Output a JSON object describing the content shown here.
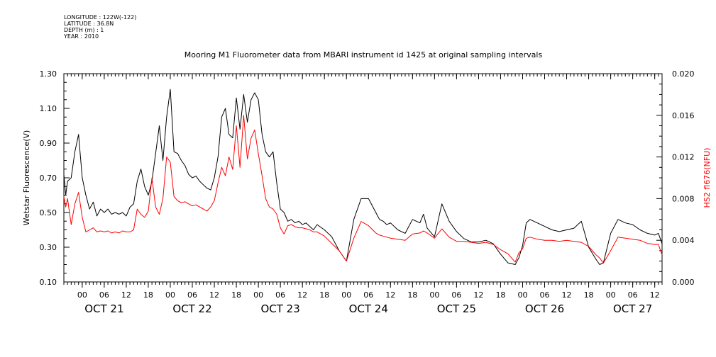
{
  "header": {
    "lines": [
      "LONGITUDE : 122W(-122)",
      "LATITUDE : 36.8N",
      "DEPTH (m) : 1",
      "YEAR : 2010"
    ]
  },
  "chart_data": {
    "type": "line",
    "title": "Mooring M1 Fluorometer data from MBARI instrument id 1425 at original sampling intervals",
    "ylabel": "Wetstar Fluorescence(V)",
    "y2label": "HS2 fl676(NFU)",
    "ylim": [
      0.1,
      1.3
    ],
    "y2lim": [
      0.0,
      0.02
    ],
    "yticks": [
      "0.10",
      "0.30",
      "0.50",
      "0.70",
      "0.90",
      "1.10",
      "1.30"
    ],
    "y2ticks": [
      "0.000",
      "0.004",
      "0.008",
      "0.012",
      "0.016",
      "0.020"
    ],
    "xlim_hours": [
      -5,
      158
    ],
    "hour_tick_labels": [
      "00",
      "06",
      "12",
      "18",
      "00",
      "06",
      "12",
      "18",
      "00",
      "06",
      "12",
      "18",
      "00",
      "06",
      "12",
      "18",
      "00",
      "06",
      "12",
      "18",
      "00",
      "06",
      "12",
      "18",
      "00",
      "06",
      "12"
    ],
    "day_labels": [
      "OCT 21",
      "OCT 22",
      "OCT 23",
      "OCT 24",
      "OCT 25",
      "OCT 26",
      "OCT 27"
    ],
    "legend": "none",
    "colors": {
      "axes": "#000000",
      "wetstar": "#000000",
      "hs2": "#ff0000",
      "y2label": "#ff0000"
    },
    "series": [
      {
        "axis": "left",
        "x": [
          -5,
          -4.5,
          -4,
          -3,
          -2,
          -1,
          0,
          1,
          2,
          3,
          4,
          5,
          6,
          7,
          8,
          9,
          10,
          11,
          12,
          13,
          14,
          15,
          16,
          17,
          18,
          19,
          20,
          21,
          22,
          23,
          24,
          25,
          26,
          27,
          28,
          29,
          30,
          31,
          32,
          33,
          34,
          35,
          36,
          37,
          38,
          39,
          40,
          41,
          42,
          43,
          44,
          45,
          46,
          47,
          48,
          49,
          50,
          51,
          52,
          53,
          54,
          55,
          56,
          57,
          58,
          59,
          60,
          61,
          62,
          63,
          64,
          66,
          68,
          70,
          72,
          74,
          76,
          78,
          80,
          81,
          82,
          83,
          84,
          86,
          88,
          90,
          92,
          93,
          94,
          96,
          98,
          100,
          102,
          104,
          106,
          108,
          110,
          112,
          114,
          116,
          118,
          119,
          120,
          121,
          122,
          124,
          126,
          128,
          130,
          132,
          134,
          136,
          138,
          140,
          141,
          142,
          144,
          146,
          148,
          150,
          152,
          154,
          156,
          157,
          158
        ],
        "y": [
          0.72,
          0.6,
          0.68,
          0.7,
          0.85,
          0.95,
          0.7,
          0.6,
          0.52,
          0.56,
          0.48,
          0.52,
          0.5,
          0.52,
          0.49,
          0.5,
          0.49,
          0.5,
          0.48,
          0.53,
          0.55,
          0.68,
          0.75,
          0.65,
          0.6,
          0.68,
          0.84,
          1.0,
          0.8,
          1.05,
          1.21,
          0.85,
          0.84,
          0.8,
          0.77,
          0.72,
          0.7,
          0.71,
          0.68,
          0.66,
          0.64,
          0.63,
          0.7,
          0.82,
          1.05,
          1.1,
          0.95,
          0.93,
          1.16,
          0.98,
          1.18,
          1.02,
          1.15,
          1.19,
          1.15,
          0.95,
          0.85,
          0.82,
          0.85,
          0.67,
          0.52,
          0.5,
          0.45,
          0.46,
          0.44,
          0.45,
          0.43,
          0.44,
          0.42,
          0.4,
          0.43,
          0.4,
          0.36,
          0.28,
          0.22,
          0.46,
          0.58,
          0.58,
          0.5,
          0.46,
          0.45,
          0.43,
          0.44,
          0.4,
          0.38,
          0.46,
          0.44,
          0.49,
          0.41,
          0.36,
          0.55,
          0.45,
          0.39,
          0.35,
          0.33,
          0.33,
          0.34,
          0.32,
          0.26,
          0.21,
          0.2,
          0.24,
          0.31,
          0.44,
          0.46,
          0.44,
          0.42,
          0.4,
          0.39,
          0.4,
          0.41,
          0.45,
          0.3,
          0.23,
          0.2,
          0.21,
          0.38,
          0.46,
          0.44,
          0.43,
          0.4,
          0.38,
          0.37,
          0.38,
          0.32
        ]
      },
      {
        "axis": "right",
        "x": [
          -5,
          -4.5,
          -4,
          -3,
          -2,
          -1,
          0,
          1,
          2,
          3,
          4,
          5,
          6,
          7,
          8,
          9,
          10,
          11,
          12,
          13,
          14,
          15,
          16,
          17,
          18,
          19,
          20,
          21,
          22,
          23,
          24,
          25,
          26,
          27,
          28,
          29,
          30,
          31,
          32,
          33,
          34,
          35,
          36,
          37,
          38,
          39,
          40,
          41,
          42,
          43,
          44,
          45,
          46,
          47,
          48,
          49,
          50,
          51,
          52,
          53,
          54,
          55,
          56,
          57,
          58,
          59,
          60,
          61,
          62,
          63,
          64,
          66,
          68,
          70,
          72,
          74,
          76,
          78,
          80,
          81,
          82,
          83,
          84,
          86,
          88,
          90,
          92,
          93,
          94,
          96,
          98,
          100,
          102,
          104,
          106,
          108,
          110,
          112,
          114,
          116,
          118,
          119,
          120,
          121,
          122,
          124,
          126,
          128,
          130,
          132,
          134,
          136,
          138,
          140,
          141,
          142,
          144,
          146,
          148,
          150,
          152,
          154,
          156,
          157,
          158
        ],
        "y": [
          0.0082,
          0.0072,
          0.008,
          0.0055,
          0.0075,
          0.0086,
          0.0062,
          0.0048,
          0.005,
          0.0052,
          0.0048,
          0.0049,
          0.0048,
          0.0049,
          0.0047,
          0.0048,
          0.0047,
          0.0049,
          0.0048,
          0.0048,
          0.005,
          0.007,
          0.0065,
          0.0062,
          0.0068,
          0.01,
          0.0072,
          0.0065,
          0.008,
          0.012,
          0.0115,
          0.0082,
          0.0078,
          0.0076,
          0.0077,
          0.0075,
          0.0073,
          0.0074,
          0.0072,
          0.007,
          0.0068,
          0.0072,
          0.0078,
          0.0095,
          0.011,
          0.0102,
          0.012,
          0.0108,
          0.015,
          0.011,
          0.016,
          0.0118,
          0.0138,
          0.0146,
          0.0123,
          0.0102,
          0.008,
          0.0072,
          0.007,
          0.0065,
          0.0052,
          0.0046,
          0.0054,
          0.0055,
          0.0053,
          0.0052,
          0.0052,
          0.0051,
          0.005,
          0.0048,
          0.0048,
          0.0044,
          0.0037,
          0.003,
          0.002,
          0.0042,
          0.0058,
          0.0054,
          0.0047,
          0.0045,
          0.0044,
          0.0043,
          0.0042,
          0.0041,
          0.004,
          0.0046,
          0.0047,
          0.0049,
          0.0047,
          0.0042,
          0.0051,
          0.0043,
          0.0039,
          0.0039,
          0.0038,
          0.0037,
          0.0038,
          0.0036,
          0.0031,
          0.0027,
          0.0019,
          0.0028,
          0.0032,
          0.0042,
          0.0043,
          0.0041,
          0.004,
          0.004,
          0.0039,
          0.004,
          0.0039,
          0.0038,
          0.0034,
          0.0026,
          0.0023,
          0.0018,
          0.003,
          0.0043,
          0.0042,
          0.0041,
          0.004,
          0.0037,
          0.0036,
          0.0036,
          0.0026
        ]
      }
    ]
  }
}
